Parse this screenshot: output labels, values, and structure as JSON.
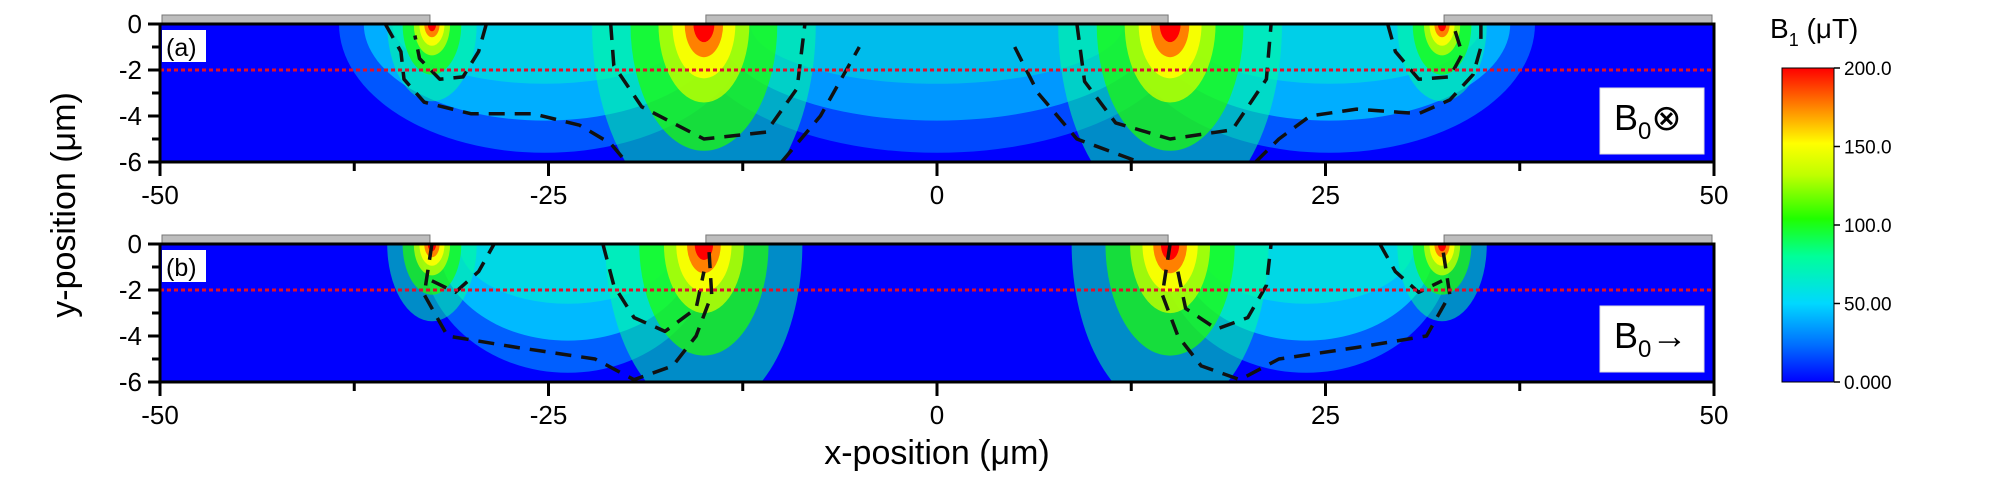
{
  "chart_data": {
    "type": "heatmap",
    "xlabel": "x-position (μm)",
    "ylabel": "y-position (μm)",
    "xlim": [
      -50,
      50
    ],
    "ylim": [
      -6,
      0
    ],
    "x_ticks": [
      "-50",
      "-25",
      "0",
      "25",
      "50"
    ],
    "y_ticks": [
      "0",
      "-2",
      "-4",
      "-6"
    ],
    "dashed_line_y": -2,
    "colors": {
      "dashed_line": "#e0102a",
      "electrode": "#bdbdbd",
      "contour": "#111111"
    },
    "colorbar": {
      "title_main": "B",
      "title_sub": "1",
      "title_unit": " (μT)",
      "range": [
        0,
        200
      ],
      "ticks": [
        "200.0",
        "150.0",
        "100.0",
        "50.00",
        "0.000"
      ],
      "colors": [
        "#0000ff",
        "#0070ff",
        "#00d8ff",
        "#00ff9a",
        "#20ff00",
        "#c0ff00",
        "#ffff00",
        "#ff8000",
        "#ff0000"
      ]
    },
    "electrodes": [
      {
        "x0": -50,
        "x1": -32.5
      },
      {
        "x0": -15,
        "x1": 15
      },
      {
        "x0": 32.5,
        "x1": 50
      }
    ],
    "panels": [
      {
        "label": "(a)",
        "field_main": "B",
        "field_sub": "0",
        "field_symbol": "⊗",
        "edges": [
          -32.5,
          -15,
          15,
          32.5
        ],
        "contours": [
          [
            [
              -35.5,
              0
            ],
            [
              -34.5,
              -1.2
            ],
            [
              -34.3,
              -2.4
            ],
            [
              -33,
              -3.4
            ],
            [
              -30,
              -3.9
            ],
            [
              -26,
              -3.9
            ],
            [
              -23,
              -4.4
            ],
            [
              -21,
              -5.2
            ],
            [
              -20,
              -6
            ]
          ],
          [
            [
              -29,
              0
            ],
            [
              -29.5,
              -1.2
            ],
            [
              -30.5,
              -2.3
            ],
            [
              -32,
              -2.4
            ],
            [
              -33.3,
              -1.5
            ],
            [
              -33.6,
              -0.5
            ]
          ],
          [
            [
              -21,
              0
            ],
            [
              -20.8,
              -1.8
            ],
            [
              -19,
              -3.6
            ],
            [
              -15,
              -5
            ],
            [
              -11,
              -4.7
            ],
            [
              -9,
              -2.8
            ],
            [
              -8.5,
              0
            ]
          ],
          [
            [
              -10,
              -6
            ],
            [
              -7.5,
              -4
            ],
            [
              -5,
              -1
            ]
          ],
          [
            [
              5,
              -1
            ],
            [
              6.5,
              -3
            ],
            [
              9,
              -5
            ],
            [
              13,
              -6
            ]
          ],
          [
            [
              9,
              0
            ],
            [
              9.5,
              -2.5
            ],
            [
              11.5,
              -4.3
            ],
            [
              15,
              -5
            ],
            [
              19,
              -4.6
            ],
            [
              21.2,
              -2.4
            ],
            [
              21.5,
              0
            ]
          ],
          [
            [
              20.5,
              -6
            ],
            [
              22,
              -5
            ],
            [
              24,
              -4
            ],
            [
              27,
              -3.7
            ],
            [
              31,
              -3.9
            ],
            [
              33,
              -3.3
            ],
            [
              34.5,
              -2.2
            ],
            [
              35,
              -1
            ],
            [
              35,
              0
            ]
          ],
          [
            [
              29,
              0
            ],
            [
              29.5,
              -1.2
            ],
            [
              31,
              -2.4
            ],
            [
              33,
              -2.3
            ],
            [
              33.8,
              -1.3
            ],
            [
              33.2,
              0
            ]
          ]
        ],
        "source_scale": [
          1,
          2.5,
          2.5,
          1
        ]
      },
      {
        "label": "(b)",
        "field_main": "B",
        "field_sub": "0",
        "field_symbol": "→",
        "edges": [
          -32.5,
          -15,
          15,
          32.5
        ],
        "contours": [
          [
            [
              -32.5,
              0
            ],
            [
              -33,
              -2.2
            ],
            [
              -31.5,
              -4
            ],
            [
              -27,
              -4.5
            ],
            [
              -22,
              -5
            ],
            [
              -19.5,
              -5.9
            ],
            [
              -17,
              -5.3
            ],
            [
              -15.5,
              -4
            ],
            [
              -14.5,
              -2.2
            ],
            [
              -14.7,
              0
            ]
          ],
          [
            [
              -21.5,
              0
            ],
            [
              -20.8,
              -1.8
            ],
            [
              -19.5,
              -3.2
            ],
            [
              -17.5,
              -3.8
            ],
            [
              -15.5,
              -2.8
            ],
            [
              -15,
              -1.2
            ]
          ],
          [
            [
              15,
              0
            ],
            [
              14.5,
              -2.2
            ],
            [
              15.5,
              -4
            ],
            [
              17,
              -5.3
            ],
            [
              19.5,
              -5.9
            ],
            [
              22,
              -5
            ],
            [
              27,
              -4.5
            ],
            [
              31.5,
              -4
            ],
            [
              33,
              -2.2
            ],
            [
              32.5,
              0
            ]
          ],
          [
            [
              15.5,
              -1.2
            ],
            [
              16,
              -2.8
            ],
            [
              18,
              -3.7
            ],
            [
              20,
              -3.2
            ],
            [
              21.2,
              -1.8
            ],
            [
              21.5,
              0
            ]
          ],
          [
            [
              28.5,
              0
            ],
            [
              29.5,
              -1.2
            ],
            [
              31,
              -2.1
            ],
            [
              32.5,
              -1.6
            ]
          ],
          [
            [
              -32.5,
              -1.6
            ],
            [
              -31,
              -2.1
            ],
            [
              -29.5,
              -1.2
            ],
            [
              -28.5,
              0
            ]
          ]
        ],
        "source_scale": [
          1,
          2.2,
          2.2,
          1
        ]
      }
    ]
  }
}
